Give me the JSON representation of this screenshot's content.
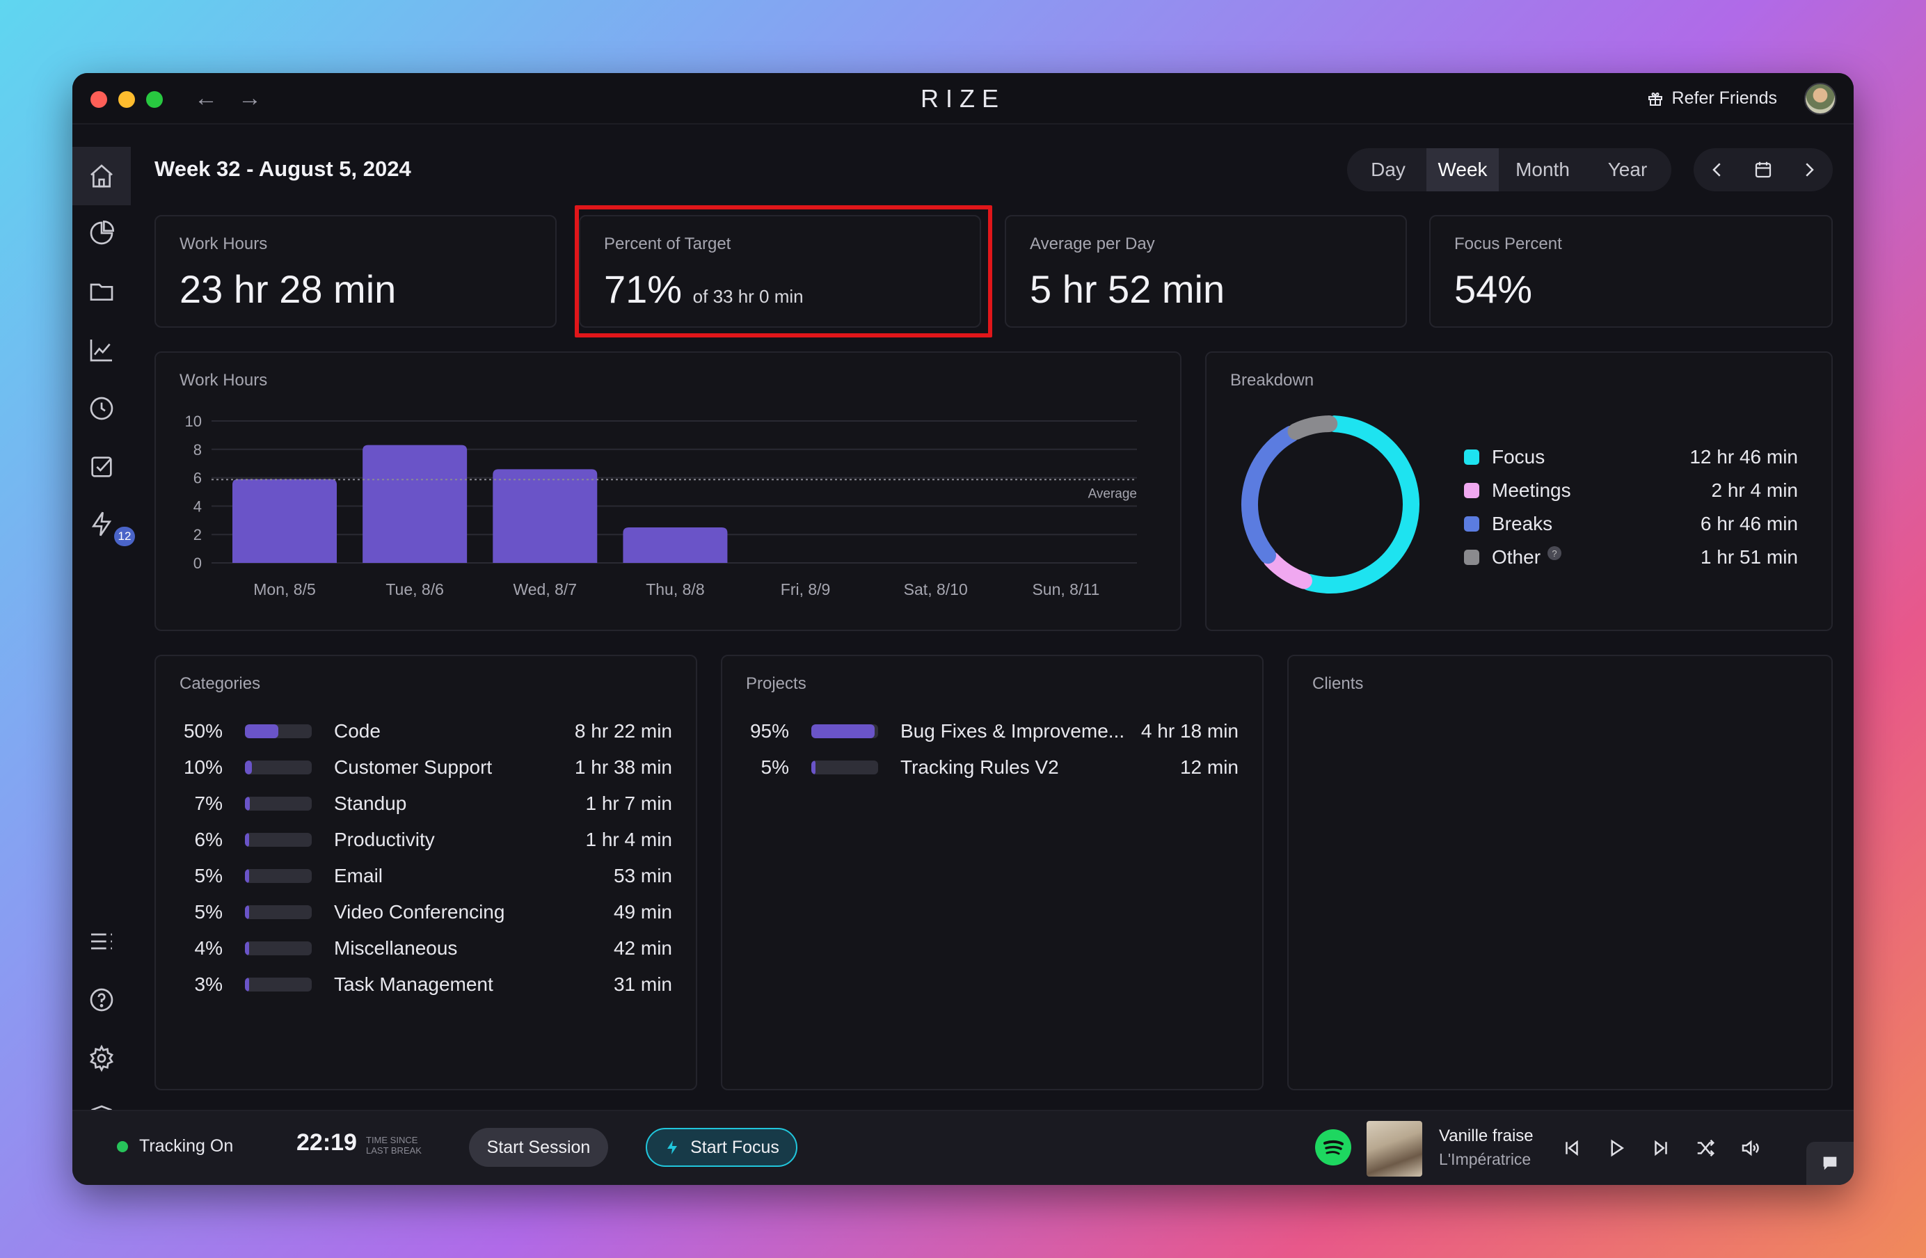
{
  "app": {
    "brand": "RIZE",
    "refer_label": "Refer Friends"
  },
  "header": {
    "title": "Week 32 - August 5, 2024",
    "periods": [
      "Day",
      "Week",
      "Month",
      "Year"
    ],
    "active_period": "Week"
  },
  "sidebar": {
    "badge_count": "12"
  },
  "stats": [
    {
      "label": "Work Hours",
      "value": "23 hr 28 min",
      "sub": ""
    },
    {
      "label": "Percent of Target",
      "value": "71%",
      "sub": "of 33 hr 0 min"
    },
    {
      "label": "Average per Day",
      "value": "5 hr 52 min",
      "sub": ""
    },
    {
      "label": "Focus Percent",
      "value": "54%",
      "sub": ""
    }
  ],
  "work_hours_chart": {
    "title": "Work Hours",
    "average_label": "Average",
    "chart_data": {
      "type": "bar",
      "categories": [
        "Mon, 8/5",
        "Tue, 8/6",
        "Wed, 8/7",
        "Thu, 8/8",
        "Fri, 8/9",
        "Sat, 8/10",
        "Sun, 8/11"
      ],
      "values": [
        5.9,
        8.3,
        6.6,
        2.5,
        0,
        0,
        0
      ],
      "average": 5.87,
      "yticks": [
        0,
        2,
        4,
        6,
        8,
        10
      ],
      "ylim": [
        0,
        10
      ],
      "color": "#6a54c8"
    }
  },
  "breakdown": {
    "title": "Breakdown",
    "items": [
      {
        "name": "Focus",
        "value": "12 hr 46 min",
        "minutes": 766,
        "color": "#1ee3f0"
      },
      {
        "name": "Meetings",
        "value": "2 hr 4 min",
        "minutes": 124,
        "color": "#f0a8f0"
      },
      {
        "name": "Breaks",
        "value": "6 hr 46 min",
        "minutes": 406,
        "color": "#5b7ce0"
      },
      {
        "name": "Other",
        "value": "1 hr 51 min",
        "minutes": 111,
        "color": "#8a8a8e"
      }
    ],
    "help_glyph": "?"
  },
  "categories": {
    "title": "Categories",
    "items": [
      {
        "pct": "50%",
        "fill": 0.5,
        "name": "Code",
        "time": "8 hr 22 min"
      },
      {
        "pct": "10%",
        "fill": 0.1,
        "name": "Customer Support",
        "time": "1 hr 38 min"
      },
      {
        "pct": "7%",
        "fill": 0.07,
        "name": "Standup",
        "time": "1 hr 7 min"
      },
      {
        "pct": "6%",
        "fill": 0.06,
        "name": "Productivity",
        "time": "1 hr 4 min"
      },
      {
        "pct": "5%",
        "fill": 0.05,
        "name": "Email",
        "time": "53 min"
      },
      {
        "pct": "5%",
        "fill": 0.05,
        "name": "Video Conferencing",
        "time": "49 min"
      },
      {
        "pct": "4%",
        "fill": 0.04,
        "name": "Miscellaneous",
        "time": "42 min"
      },
      {
        "pct": "3%",
        "fill": 0.03,
        "name": "Task Management",
        "time": "31 min"
      }
    ]
  },
  "projects": {
    "title": "Projects",
    "items": [
      {
        "pct": "95%",
        "fill": 0.95,
        "name": "Bug Fixes & Improveme...",
        "time": "4 hr 18 min"
      },
      {
        "pct": "5%",
        "fill": 0.05,
        "name": "Tracking Rules V2",
        "time": "12 min"
      }
    ]
  },
  "clients": {
    "title": "Clients"
  },
  "footer": {
    "tracking": "Tracking On",
    "timer": "22:19",
    "timer_sub_1": "TIME SINCE",
    "timer_sub_2": "LAST BREAK",
    "start_session": "Start Session",
    "start_focus": "Start Focus",
    "song": "Vanille fraise",
    "artist": "L'Impératrice"
  }
}
